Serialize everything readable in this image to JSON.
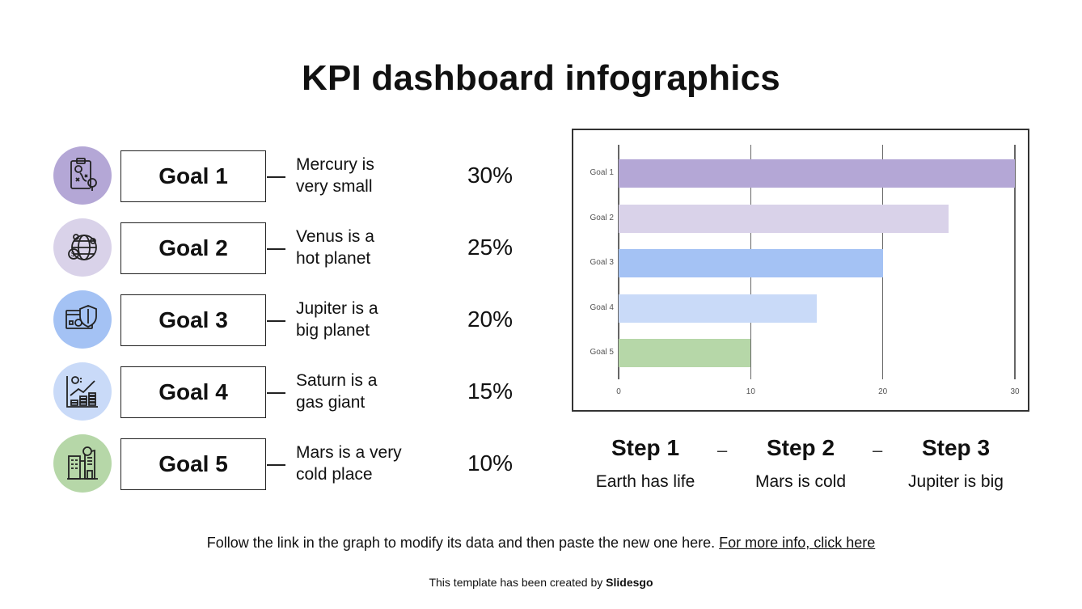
{
  "title": "KPI dashboard infographics",
  "goals": [
    {
      "label": "Goal 1",
      "desc_line1": "Mercury is",
      "desc_line2": "very small",
      "percent": "30%",
      "icon": "clipboard-strategy-icon",
      "color": "#b4a7d6"
    },
    {
      "label": "Goal 2",
      "desc_line1": "Venus is a",
      "desc_line2": "hot planet",
      "percent": "25%",
      "icon": "globe-money-icon",
      "color": "#d9d2e9"
    },
    {
      "label": "Goal 3",
      "desc_line1": "Jupiter is a",
      "desc_line2": "big planet",
      "percent": "20%",
      "icon": "secure-payment-icon",
      "color": "#a4c2f4"
    },
    {
      "label": "Goal 4",
      "desc_line1": "Saturn is a",
      "desc_line2": "gas giant",
      "percent": "15%",
      "icon": "coin-growth-icon",
      "color": "#c9daf8"
    },
    {
      "label": "Goal 5",
      "desc_line1": "Mars is a very",
      "desc_line2": "cold place",
      "percent": "10%",
      "icon": "building-money-icon",
      "color": "#b6d7a8"
    }
  ],
  "chart_data": {
    "type": "bar",
    "orientation": "horizontal",
    "title": "",
    "xlabel": "",
    "ylabel": "",
    "categories": [
      "Goal 1",
      "Goal 2",
      "Goal 3",
      "Goal 4",
      "Goal 5"
    ],
    "values": [
      30,
      25,
      20,
      15,
      10
    ],
    "colors": [
      "#b4a7d6",
      "#d9d2e9",
      "#a4c2f4",
      "#c9daf8",
      "#b6d7a8"
    ],
    "xlim": [
      0,
      30
    ],
    "xticks": [
      "0",
      "10",
      "20",
      "30"
    ],
    "grid": true,
    "legend": "none"
  },
  "steps": [
    {
      "title": "Step 1",
      "desc": "Earth has life"
    },
    {
      "title": "Step 2",
      "desc": "Mars is cold"
    },
    {
      "title": "Step 3",
      "desc": "Jupiter is big"
    }
  ],
  "step_separator": "–",
  "footer": {
    "note": "Follow the link in the graph to modify its data and then paste the new one here.",
    "link": "For more info, click here",
    "credit_prefix": "This template has been created by",
    "credit_brand": "Slidesgo"
  }
}
